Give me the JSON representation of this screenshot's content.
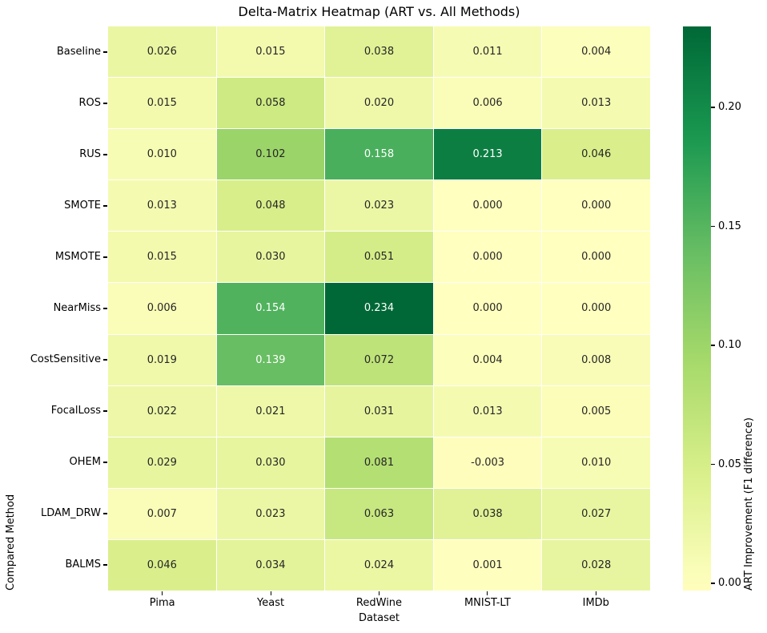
{
  "chart_data": {
    "type": "heatmap",
    "title": "Delta-Matrix Heatmap (ART vs. All Methods)",
    "xlabel": "Dataset",
    "ylabel": "Compared Method",
    "columns": [
      "Pima",
      "Yeast",
      "RedWine",
      "MNIST-LT",
      "IMDb"
    ],
    "rows": [
      "Baseline",
      "ROS",
      "RUS",
      "SMOTE",
      "MSMOTE",
      "NearMiss",
      "CostSensitive",
      "FocalLoss",
      "OHEM",
      "LDAM_DRW",
      "BALMS"
    ],
    "values": [
      [
        0.026,
        0.015,
        0.038,
        0.011,
        0.004
      ],
      [
        0.015,
        0.058,
        0.02,
        0.006,
        0.013
      ],
      [
        0.01,
        0.102,
        0.158,
        0.213,
        0.046
      ],
      [
        0.013,
        0.048,
        0.023,
        0.0,
        0.0
      ],
      [
        0.015,
        0.03,
        0.051,
        0.0,
        0.0
      ],
      [
        0.006,
        0.154,
        0.234,
        0.0,
        0.0
      ],
      [
        0.019,
        0.139,
        0.072,
        0.004,
        0.008
      ],
      [
        0.022,
        0.021,
        0.031,
        0.013,
        0.005
      ],
      [
        0.029,
        0.03,
        0.081,
        -0.003,
        0.01
      ],
      [
        0.007,
        0.023,
        0.063,
        0.038,
        0.027
      ],
      [
        0.046,
        0.034,
        0.024,
        0.001,
        0.028
      ]
    ],
    "annotation_decimals": 3,
    "grid": false,
    "colorbar": {
      "label": "ART Improvement (F1 difference)",
      "ticks": [
        {
          "value": 0.0,
          "label": "0.00"
        },
        {
          "value": 0.05,
          "label": "0.05"
        },
        {
          "value": 0.1,
          "label": "0.10"
        },
        {
          "value": 0.15,
          "label": "0.15"
        },
        {
          "value": 0.2,
          "label": "0.20"
        }
      ],
      "vmin": -0.003,
      "vmax": 0.234,
      "center": 0,
      "colormap": "RdYlGn",
      "colormap_anchors": [
        "#a50026",
        "#d73027",
        "#f46d43",
        "#fdae61",
        "#fee08b",
        "#ffffbf",
        "#d9ef8b",
        "#a6d96a",
        "#66bd63",
        "#1a9850",
        "#006837"
      ]
    },
    "colors": {
      "background": "#ffffff",
      "cell_gridline": "#ffffff",
      "annotation_dark": "#262626",
      "annotation_light": "#ffffff",
      "axis_text": "#000000",
      "min_cell": "#fffdbd",
      "max_cell": "#006837"
    }
  }
}
